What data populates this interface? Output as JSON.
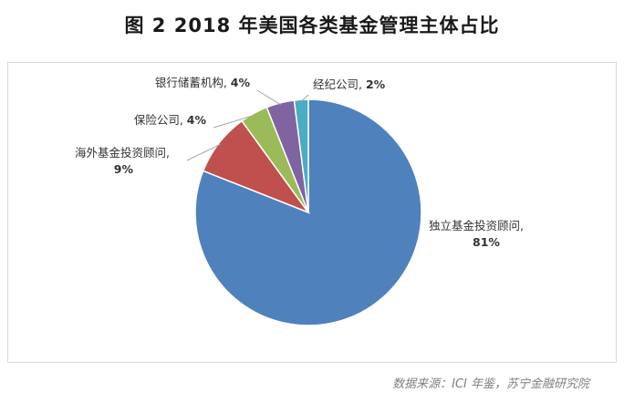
{
  "title": "图 2  2018 年美国各类基金管理主体占比",
  "source": "数据来源：ICI 年鉴，苏宁金融研究院",
  "chart_data": {
    "type": "pie",
    "title": "图 2  2018 年美国各类基金管理主体占比",
    "slices": [
      {
        "name": "独立基金投资顾问",
        "value": 81,
        "label_value": "81%",
        "color": "#4f81bd"
      },
      {
        "name": "海外基金投资顾问",
        "value": 9,
        "label_value": "9%",
        "color": "#c0504d"
      },
      {
        "name": "保险公司",
        "value": 4,
        "label_value": "4%",
        "color": "#9bbb59"
      },
      {
        "name": "银行储蓄机构",
        "value": 4,
        "label_value": "4%",
        "color": "#8064a2"
      },
      {
        "name": "经纪公司",
        "value": 2,
        "label_value": "2%",
        "color": "#4bacc6"
      }
    ],
    "legend": "none",
    "data_labels": "outside-with-leader-lines"
  }
}
